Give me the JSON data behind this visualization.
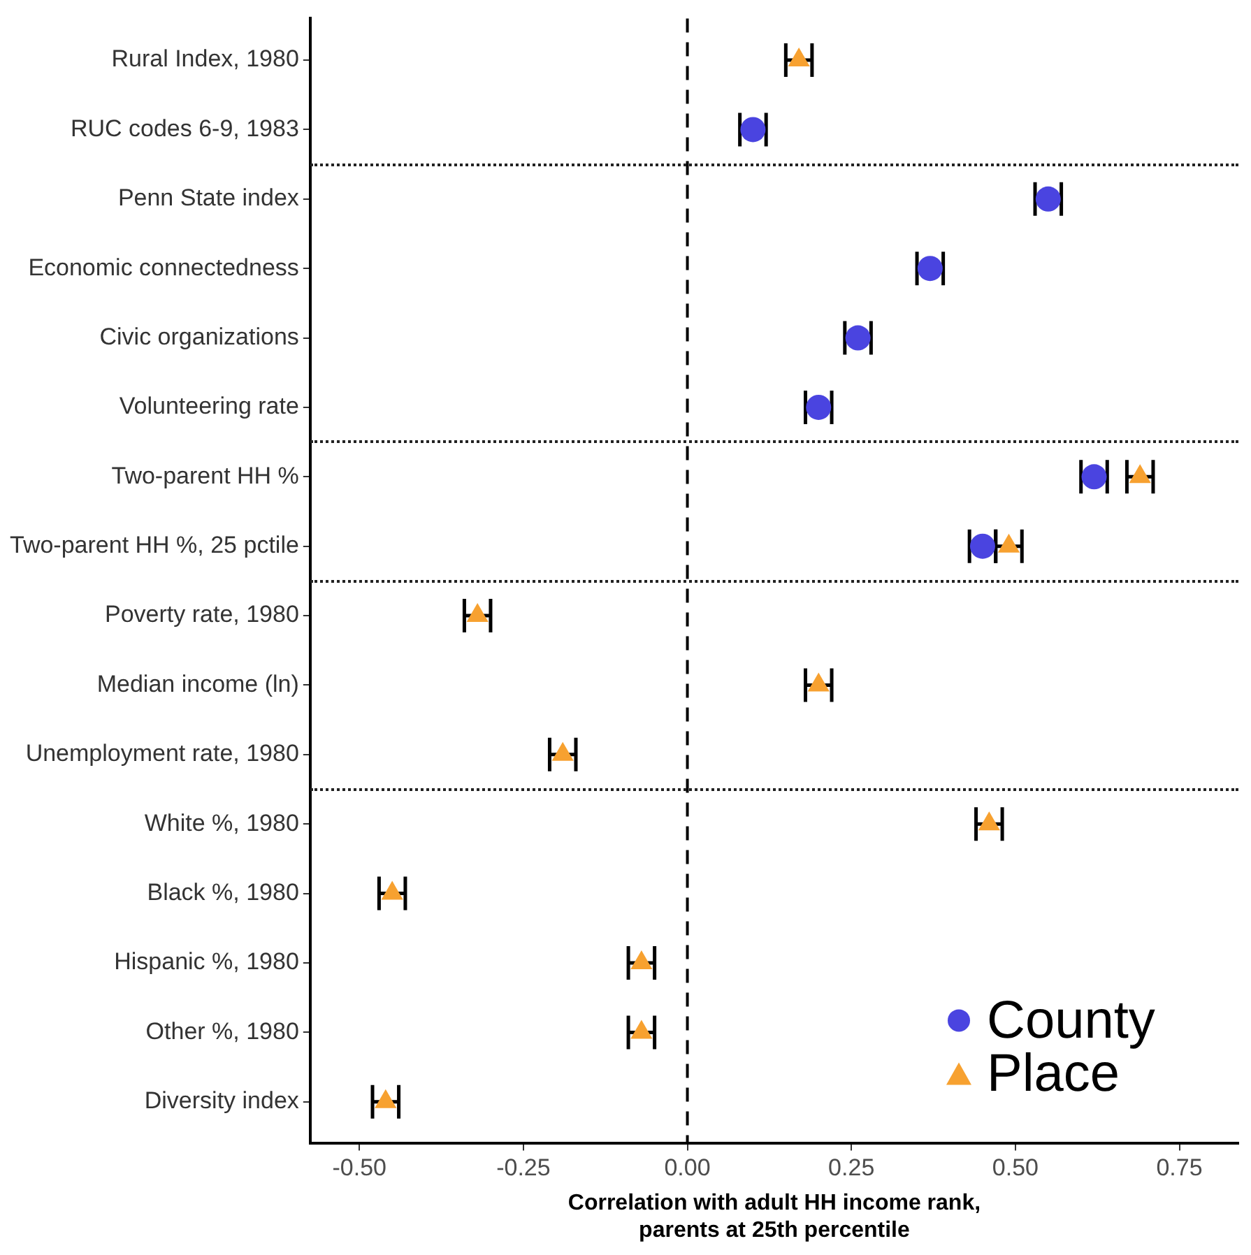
{
  "chart_data": {
    "type": "scatter",
    "orientation": "horizontal",
    "xlabel": "Correlation with adult HH income rank,\nparents at 25th percentile",
    "categories": [
      "Rural Index, 1980",
      "RUC codes 6-9, 1983",
      "Penn State index",
      "Economic connectedness",
      "Civic organizations",
      "Volunteering rate",
      "Two-parent HH %",
      "Two-parent HH %, 25 pctile",
      "Poverty rate, 1980",
      "Median income (ln)",
      "Unemployment rate, 1980",
      "White %, 1980",
      "Black %, 1980",
      "Hispanic %, 1980",
      "Other %, 1980",
      "Diversity index"
    ],
    "series": [
      {
        "name": "County",
        "color": "#4a44e0",
        "marker": "circle",
        "values": [
          null,
          0.1,
          0.55,
          0.37,
          0.26,
          0.2,
          0.62,
          0.45,
          null,
          null,
          null,
          null,
          null,
          null,
          null,
          null
        ],
        "errors": [
          null,
          0.02,
          0.02,
          0.02,
          0.02,
          0.02,
          0.02,
          0.02,
          null,
          null,
          null,
          null,
          null,
          null,
          null,
          null
        ]
      },
      {
        "name": "Place",
        "color": "#f7a130",
        "marker": "triangle",
        "values": [
          0.17,
          null,
          null,
          null,
          null,
          null,
          0.69,
          0.49,
          -0.32,
          0.2,
          -0.19,
          0.46,
          -0.45,
          -0.07,
          -0.07,
          -0.46
        ],
        "errors": [
          0.02,
          null,
          null,
          null,
          null,
          null,
          0.02,
          0.02,
          0.02,
          0.02,
          0.02,
          0.02,
          0.02,
          0.02,
          0.02,
          0.02
        ]
      }
    ],
    "xlim": [
      -0.575,
      0.84
    ],
    "xticks": [
      {
        "value": -0.5,
        "label": "-0.50"
      },
      {
        "value": -0.25,
        "label": "-0.25"
      },
      {
        "value": 0,
        "label": "0.00"
      },
      {
        "value": 0.25,
        "label": "0.25"
      },
      {
        "value": 0.5,
        "label": "0.50"
      },
      {
        "value": 0.75,
        "label": "0.75"
      }
    ],
    "ref_lines": [
      {
        "axis": "x",
        "value": 0,
        "color": "#000000",
        "line_style": "dashed"
      }
    ],
    "grid": false,
    "legend": "bottom right"
  }
}
